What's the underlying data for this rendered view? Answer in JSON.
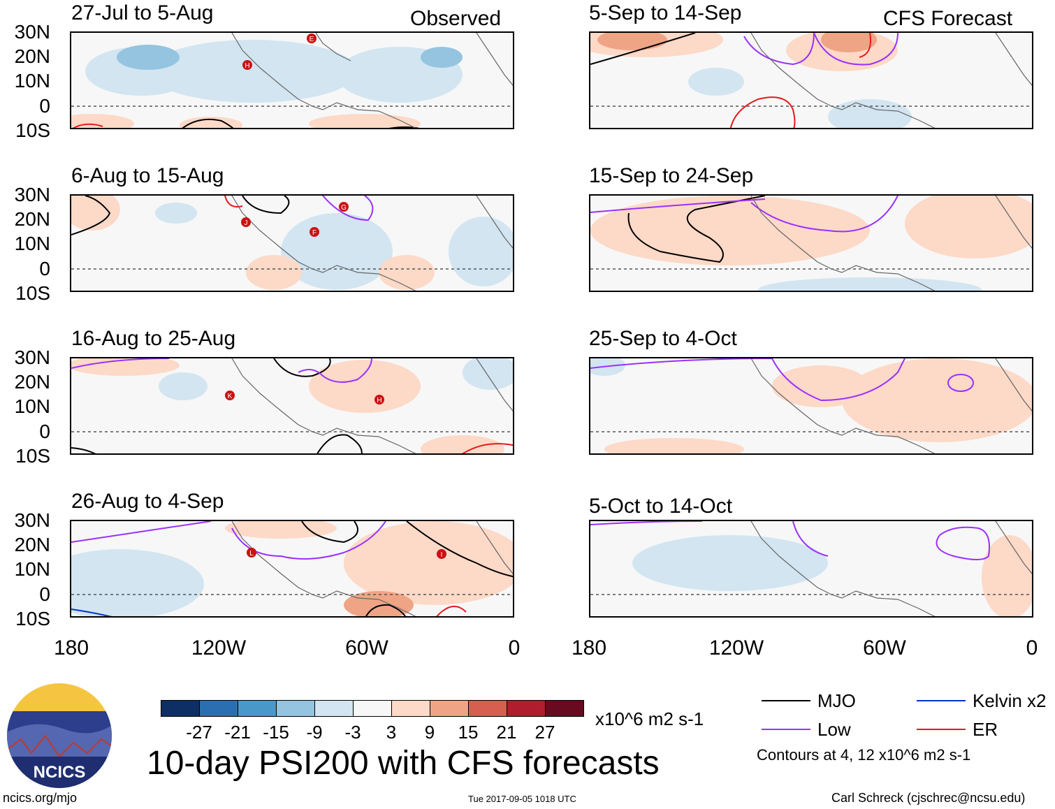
{
  "header": {
    "observed_label": "Observed",
    "forecast_label": "CFS Forecast"
  },
  "panels_left": [
    {
      "title": "27-Jul to 5-Aug"
    },
    {
      "title": "6-Aug to 15-Aug"
    },
    {
      "title": "16-Aug to 25-Aug"
    },
    {
      "title": "26-Aug to 4-Sep"
    }
  ],
  "panels_right": [
    {
      "title": "5-Sep to 14-Sep"
    },
    {
      "title": "15-Sep to 24-Sep"
    },
    {
      "title": "25-Sep to 4-Oct"
    },
    {
      "title": "5-Oct to 14-Oct"
    }
  ],
  "lat_labels": [
    "30N",
    "20N",
    "10N",
    "0",
    "10S"
  ],
  "lon_labels": [
    "180",
    "120W",
    "60W",
    "0"
  ],
  "storm_labels": {
    "p1": [
      "E",
      "H"
    ],
    "p2": [
      "G",
      "J",
      "F"
    ],
    "p3": [
      "K",
      "H"
    ],
    "p4": [
      "L",
      "I"
    ]
  },
  "colorbar": {
    "colors": [
      "#0d2f63",
      "#2c6fb0",
      "#4a98c9",
      "#94c4df",
      "#d2e5f1",
      "#f7f7f7",
      "#fdd9c7",
      "#f0a486",
      "#d65f4f",
      "#b01e2e",
      "#680a20"
    ],
    "labels": [
      "-27",
      "-21",
      "-15",
      "-9",
      "-3",
      "3",
      "9",
      "15",
      "21",
      "27"
    ],
    "units": "x10^6 m2 s-1"
  },
  "title": "10-day PSI200 with CFS forecasts",
  "legend": [
    {
      "label": "MJO",
      "color": "#000000"
    },
    {
      "label": "Kelvin x2",
      "color": "#0033cc"
    },
    {
      "label": "Low",
      "color": "#9b30ff"
    },
    {
      "label": "ER",
      "color": "#e41a1c"
    }
  ],
  "contour_note": "Contours at 4, 12 x10^6 m2 s-1",
  "logo_text": "NCICS",
  "footer": {
    "left": "ncics.org/mjo",
    "center": "Tue 2017-09-05 1018 UTC",
    "right": "Carl Schreck (cjschrec@ncsu.edu)"
  }
}
